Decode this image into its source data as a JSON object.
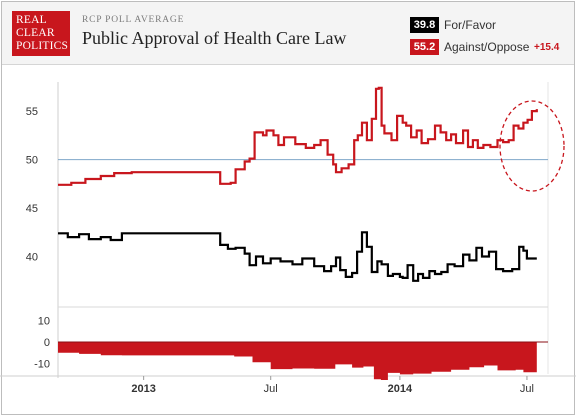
{
  "header": {
    "logo_lines": [
      "REAL",
      "CLEAR",
      "POLITICS"
    ],
    "kicker": "RCP POLL AVERAGE",
    "title": "Public Approval of Health Care Law"
  },
  "legend": [
    {
      "value": "39.8",
      "label": "For/Favor",
      "color": "#000000"
    },
    {
      "value": "55.2",
      "label": "Against/Oppose",
      "color": "#c8161d",
      "spread": "+15.4"
    }
  ],
  "chart_data": [
    {
      "type": "line",
      "x_range": [
        "2012-09-01",
        "2014-07-31"
      ],
      "ylim": [
        35,
        58
      ],
      "yticks": [
        "55",
        "50",
        "45",
        "40"
      ],
      "ytick_values": [
        55,
        50,
        45,
        40
      ],
      "reference_line": 50,
      "xticks": [
        {
          "label": "2013",
          "date": "2013-01-01",
          "bold": true
        },
        {
          "label": "Jul",
          "date": "2013-07-01",
          "bold": false
        },
        {
          "label": "2014",
          "date": "2014-01-01",
          "bold": true
        },
        {
          "label": "Jul",
          "date": "2014-07-01",
          "bold": false
        }
      ],
      "series": [
        {
          "name": "Against/Oppose",
          "color": "#c8161d",
          "points": [
            [
              "2012-09-01",
              47.4
            ],
            [
              "2012-09-20",
              47.6
            ],
            [
              "2012-10-10",
              48.0
            ],
            [
              "2012-11-01",
              48.3
            ],
            [
              "2012-11-20",
              48.6
            ],
            [
              "2012-12-15",
              48.7
            ],
            [
              "2013-01-15",
              48.7
            ],
            [
              "2013-02-15",
              48.7
            ],
            [
              "2013-03-15",
              48.7
            ],
            [
              "2013-04-10",
              48.7
            ],
            [
              "2013-04-20",
              47.5
            ],
            [
              "2013-05-05",
              47.6
            ],
            [
              "2013-05-12",
              49.0
            ],
            [
              "2013-05-25",
              49.8
            ],
            [
              "2013-06-01",
              50.1
            ],
            [
              "2013-06-08",
              52.8
            ],
            [
              "2013-06-20",
              52.5
            ],
            [
              "2013-06-25",
              53.0
            ],
            [
              "2013-07-05",
              52.5
            ],
            [
              "2013-07-12",
              51.5
            ],
            [
              "2013-07-20",
              52.3
            ],
            [
              "2013-08-05",
              51.6
            ],
            [
              "2013-08-20",
              51.2
            ],
            [
              "2013-09-01",
              51.5
            ],
            [
              "2013-09-10",
              52.0
            ],
            [
              "2013-09-20",
              50.5
            ],
            [
              "2013-09-28",
              49.5
            ],
            [
              "2013-10-02",
              48.7
            ],
            [
              "2013-10-10",
              49.1
            ],
            [
              "2013-10-20",
              49.5
            ],
            [
              "2013-10-28",
              52.0
            ],
            [
              "2013-11-02",
              52.5
            ],
            [
              "2013-11-08",
              53.8
            ],
            [
              "2013-11-15",
              52.0
            ],
            [
              "2013-11-22",
              54.2
            ],
            [
              "2013-11-28",
              57.3
            ],
            [
              "2013-12-02",
              57.4
            ],
            [
              "2013-12-06",
              53.5
            ],
            [
              "2013-12-10",
              52.7
            ],
            [
              "2013-12-20",
              52.0
            ],
            [
              "2013-12-28",
              54.5
            ],
            [
              "2014-01-05",
              53.8
            ],
            [
              "2014-01-10",
              53.5
            ],
            [
              "2014-01-17",
              52.3
            ],
            [
              "2014-01-25",
              53.0
            ],
            [
              "2014-02-01",
              51.7
            ],
            [
              "2014-02-10",
              52.1
            ],
            [
              "2014-02-20",
              53.5
            ],
            [
              "2014-02-28",
              52.8
            ],
            [
              "2014-03-08",
              52.0
            ],
            [
              "2014-03-15",
              52.6
            ],
            [
              "2014-03-22",
              51.7
            ],
            [
              "2014-04-01",
              53.0
            ],
            [
              "2014-04-08",
              51.3
            ],
            [
              "2014-04-15",
              52.0
            ],
            [
              "2014-04-22",
              51.2
            ],
            [
              "2014-04-30",
              51.5
            ],
            [
              "2014-05-10",
              51.3
            ],
            [
              "2014-05-20",
              52.0
            ],
            [
              "2014-05-28",
              51.8
            ],
            [
              "2014-06-05",
              52.0
            ],
            [
              "2014-06-12",
              53.5
            ],
            [
              "2014-06-19",
              53.2
            ],
            [
              "2014-06-26",
              53.8
            ],
            [
              "2014-07-02",
              54.1
            ],
            [
              "2014-07-08",
              55.0
            ],
            [
              "2014-07-15",
              55.2
            ]
          ]
        },
        {
          "name": "For/Favor",
          "color": "#000000",
          "points": [
            [
              "2012-09-01",
              42.4
            ],
            [
              "2012-09-15",
              42.0
            ],
            [
              "2012-10-01",
              42.3
            ],
            [
              "2012-10-15",
              41.8
            ],
            [
              "2012-11-01",
              42.0
            ],
            [
              "2012-11-15",
              41.7
            ],
            [
              "2012-12-01",
              42.4
            ],
            [
              "2013-01-15",
              42.4
            ],
            [
              "2013-02-15",
              42.4
            ],
            [
              "2013-03-15",
              42.4
            ],
            [
              "2013-04-10",
              42.4
            ],
            [
              "2013-04-20",
              41.2
            ],
            [
              "2013-05-01",
              40.8
            ],
            [
              "2013-05-12",
              40.9
            ],
            [
              "2013-05-25",
              40.3
            ],
            [
              "2013-06-01",
              39.1
            ],
            [
              "2013-06-10",
              40.0
            ],
            [
              "2013-06-20",
              39.3
            ],
            [
              "2013-07-01",
              39.8
            ],
            [
              "2013-07-15",
              39.5
            ],
            [
              "2013-08-01",
              39.2
            ],
            [
              "2013-08-15",
              39.8
            ],
            [
              "2013-09-01",
              39.0
            ],
            [
              "2013-09-15",
              38.5
            ],
            [
              "2013-09-25",
              39.0
            ],
            [
              "2013-10-02",
              39.9
            ],
            [
              "2013-10-08",
              38.6
            ],
            [
              "2013-10-16",
              37.9
            ],
            [
              "2013-10-25",
              38.3
            ],
            [
              "2013-11-01",
              40.5
            ],
            [
              "2013-11-08",
              42.5
            ],
            [
              "2013-11-15",
              41.0
            ],
            [
              "2013-11-22",
              38.4
            ],
            [
              "2013-11-30",
              39.5
            ],
            [
              "2013-12-06",
              39.2
            ],
            [
              "2013-12-15",
              38.0
            ],
            [
              "2013-12-22",
              38.2
            ],
            [
              "2014-01-01",
              37.9
            ],
            [
              "2014-01-05",
              37.8
            ],
            [
              "2014-01-12",
              39.1
            ],
            [
              "2014-01-20",
              37.5
            ],
            [
              "2014-01-27",
              38.2
            ],
            [
              "2014-02-03",
              37.8
            ],
            [
              "2014-02-12",
              38.5
            ],
            [
              "2014-02-20",
              38.2
            ],
            [
              "2014-03-01",
              38.4
            ],
            [
              "2014-03-10",
              39.2
            ],
            [
              "2014-03-20",
              39.0
            ],
            [
              "2014-04-01",
              40.2
            ],
            [
              "2014-04-10",
              39.6
            ],
            [
              "2014-04-20",
              40.9
            ],
            [
              "2014-04-28",
              40.0
            ],
            [
              "2014-05-08",
              40.5
            ],
            [
              "2014-05-18",
              38.7
            ],
            [
              "2014-05-28",
              38.5
            ],
            [
              "2014-06-10",
              38.7
            ],
            [
              "2014-06-20",
              41.0
            ],
            [
              "2014-06-26",
              40.6
            ],
            [
              "2014-07-01",
              39.8
            ],
            [
              "2014-07-15",
              39.8
            ]
          ]
        }
      ],
      "annotation": {
        "shape": "dashed ellipse",
        "color": "#c8161d",
        "around": "Against/Oppose, May–Jul 2014"
      }
    },
    {
      "type": "area",
      "name": "Spread",
      "ylim": [
        -15,
        15
      ],
      "yticks": [
        "10",
        "0",
        "-10"
      ],
      "ytick_values": [
        10,
        0,
        -10
      ],
      "color": "#c8161d",
      "points": [
        [
          "2012-09-01",
          -5.0
        ],
        [
          "2012-10-01",
          -5.6
        ],
        [
          "2012-11-01",
          -6.2
        ],
        [
          "2012-12-01",
          -6.3
        ],
        [
          "2013-03-01",
          -6.3
        ],
        [
          "2013-04-15",
          -6.3
        ],
        [
          "2013-05-10",
          -6.8
        ],
        [
          "2013-06-05",
          -9.5
        ],
        [
          "2013-07-01",
          -12.7
        ],
        [
          "2013-08-01",
          -12.4
        ],
        [
          "2013-09-01",
          -12.5
        ],
        [
          "2013-10-01",
          -10.5
        ],
        [
          "2013-10-25",
          -12.0
        ],
        [
          "2013-11-10",
          -11.5
        ],
        [
          "2013-11-25",
          -17.5
        ],
        [
          "2013-12-05",
          -17.8
        ],
        [
          "2013-12-15",
          -14.5
        ],
        [
          "2014-01-01",
          -15.2
        ],
        [
          "2014-01-20",
          -14.8
        ],
        [
          "2014-02-15",
          -13.9
        ],
        [
          "2014-03-15",
          -13.0
        ],
        [
          "2014-04-10",
          -11.8
        ],
        [
          "2014-05-01",
          -11.0
        ],
        [
          "2014-05-20",
          -13.3
        ],
        [
          "2014-06-15",
          -13.0
        ],
        [
          "2014-06-26",
          -14.2
        ],
        [
          "2014-07-15",
          -15.4
        ]
      ]
    }
  ]
}
